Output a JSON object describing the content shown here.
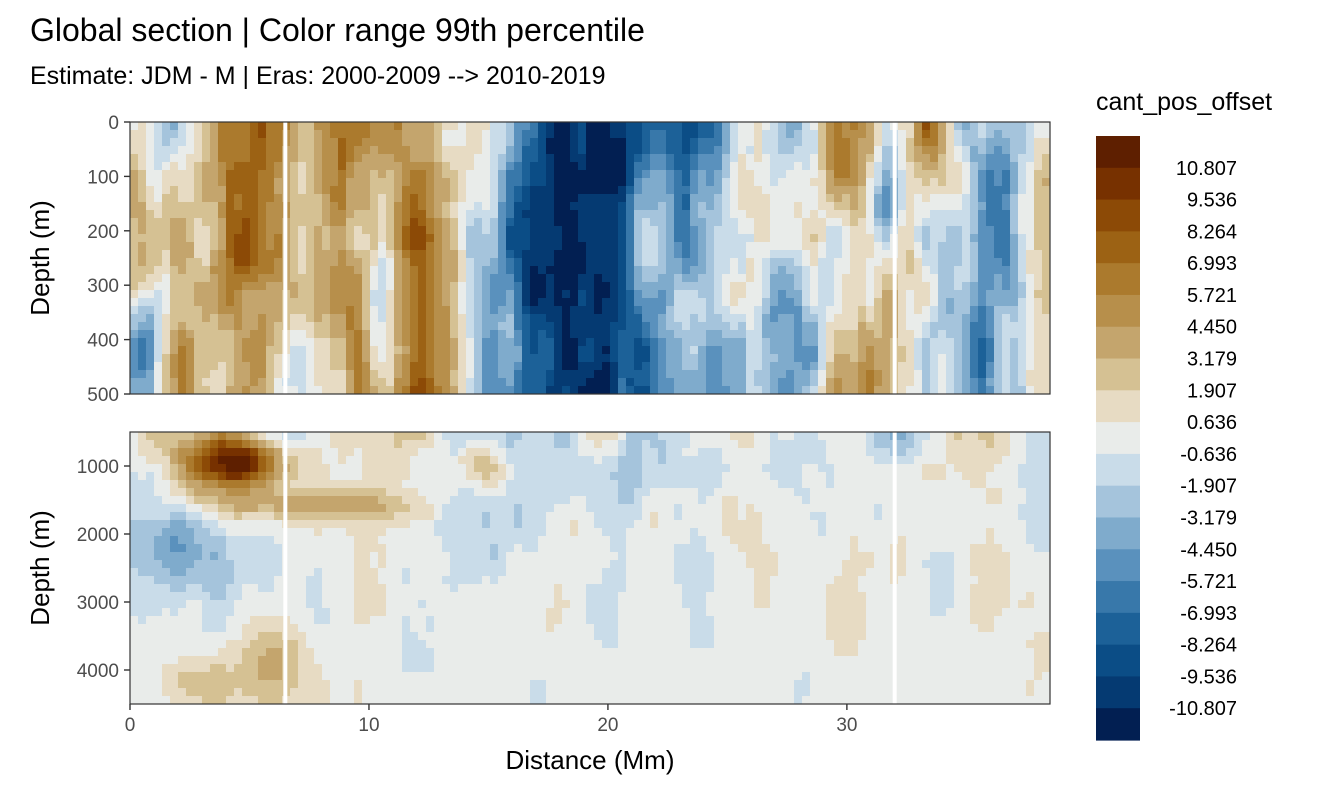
{
  "chart_data": {
    "type": "heatmap",
    "title": "Global section | Color range 99th percentile",
    "subtitle": "Estimate: JDM - M | Eras: 2000-2009 --> 2010-2019",
    "xlabel": "Distance (Mm)",
    "ylabel": "Depth (m)",
    "xlim": [
      0,
      38.5
    ],
    "x_ticks": [
      "0",
      "10",
      "20",
      "30"
    ],
    "x_tick_values": [
      0,
      10,
      20,
      30
    ],
    "panels": [
      {
        "ylim": [
          0,
          500
        ],
        "y_ticks": [
          "0",
          "100",
          "200",
          "300",
          "400",
          "500"
        ],
        "y_tick_values": [
          0,
          100,
          200,
          300,
          400,
          500
        ]
      },
      {
        "ylim": [
          500,
          4500
        ],
        "y_ticks": [
          "1000",
          "2000",
          "3000",
          "4000"
        ],
        "y_tick_values": [
          1000,
          2000,
          3000,
          4000
        ]
      }
    ],
    "legend": {
      "title": "cant_pos_offset",
      "placement": "right",
      "labels": [
        "10.807",
        "9.536",
        "8.264",
        "6.993",
        "5.721",
        "4.450",
        "3.179",
        "1.907",
        "0.636",
        "-0.636",
        "-1.907",
        "-3.179",
        "-4.450",
        "-5.721",
        "-6.993",
        "-8.264",
        "-9.536",
        "-10.807"
      ],
      "colors": [
        "#5e1f00",
        "#773100",
        "#8c4a06",
        "#9c6214",
        "#ab7a2d",
        "#b78f4b",
        "#c4a56d",
        "#d5c193",
        "#e7dbc3",
        "#e9ecea",
        "#c9dce9",
        "#a5c4dc",
        "#7fabcc",
        "#5a91bd",
        "#3878aa",
        "#1c6198",
        "#0b4d86",
        "#053a72",
        "#021f52"
      ]
    },
    "grid": false
  }
}
